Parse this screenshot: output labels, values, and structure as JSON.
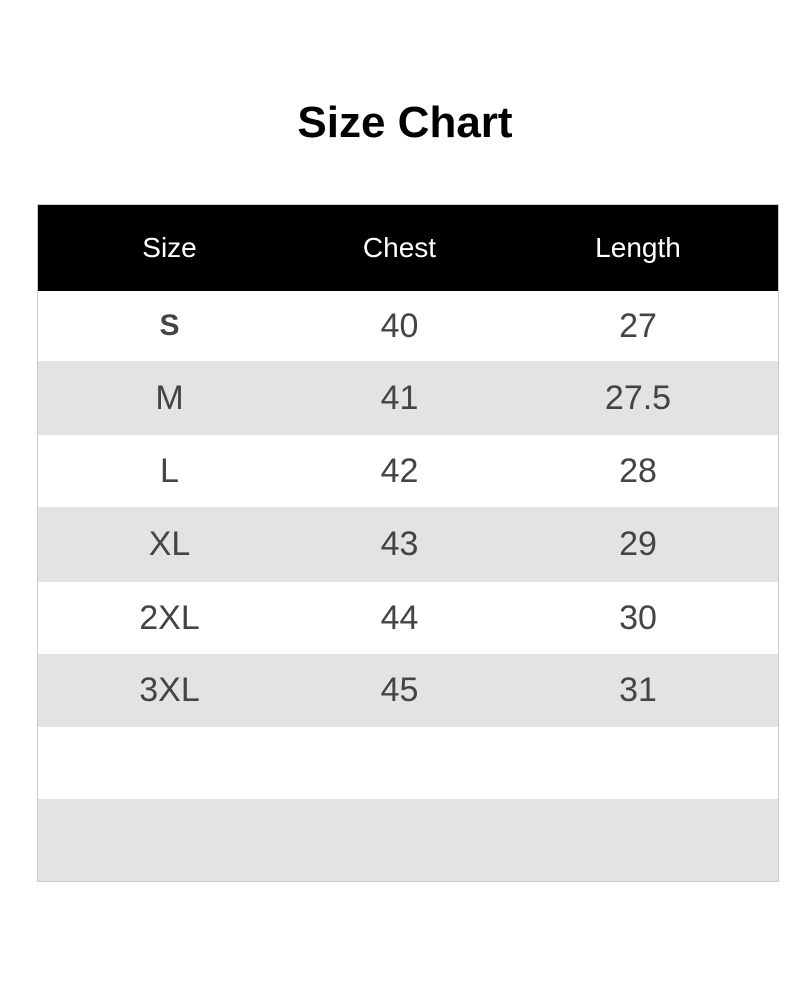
{
  "title": "Size Chart",
  "headers": [
    "Size",
    "Chest",
    "Length"
  ],
  "rows": [
    [
      "S",
      "40",
      "27"
    ],
    [
      "M",
      "41",
      "27.5"
    ],
    [
      "L",
      "42",
      "28"
    ],
    [
      "XL",
      "43",
      "29"
    ],
    [
      "2XL",
      "44",
      "30"
    ],
    [
      "3XL",
      "45",
      "31"
    ],
    [
      "",
      "",
      ""
    ],
    [
      "",
      "",
      ""
    ]
  ]
}
